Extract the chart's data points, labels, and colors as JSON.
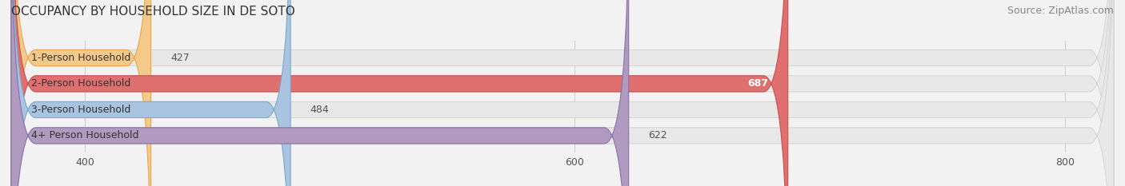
{
  "title": "OCCUPANCY BY HOUSEHOLD SIZE IN DE SOTO",
  "source": "Source: ZipAtlas.com",
  "categories": [
    "1-Person Household",
    "2-Person Household",
    "3-Person Household",
    "4+ Person Household"
  ],
  "values": [
    427,
    687,
    484,
    622
  ],
  "bar_colors": [
    "#f5c98a",
    "#e07070",
    "#a8c4e0",
    "#b09abf"
  ],
  "bar_edge_colors": [
    "#e8a84a",
    "#c85050",
    "#7aaac8",
    "#8a70a8"
  ],
  "label_colors": [
    "#555555",
    "#ffffff",
    "#555555",
    "#555555"
  ],
  "xlim": [
    370,
    820
  ],
  "xticks": [
    400,
    600,
    800
  ],
  "background_color": "#f2f2f2",
  "bar_background_color": "#e8e8e8",
  "title_fontsize": 11,
  "source_fontsize": 9,
  "label_fontsize": 9,
  "value_fontsize": 9,
  "tick_fontsize": 9,
  "bar_height": 0.62
}
